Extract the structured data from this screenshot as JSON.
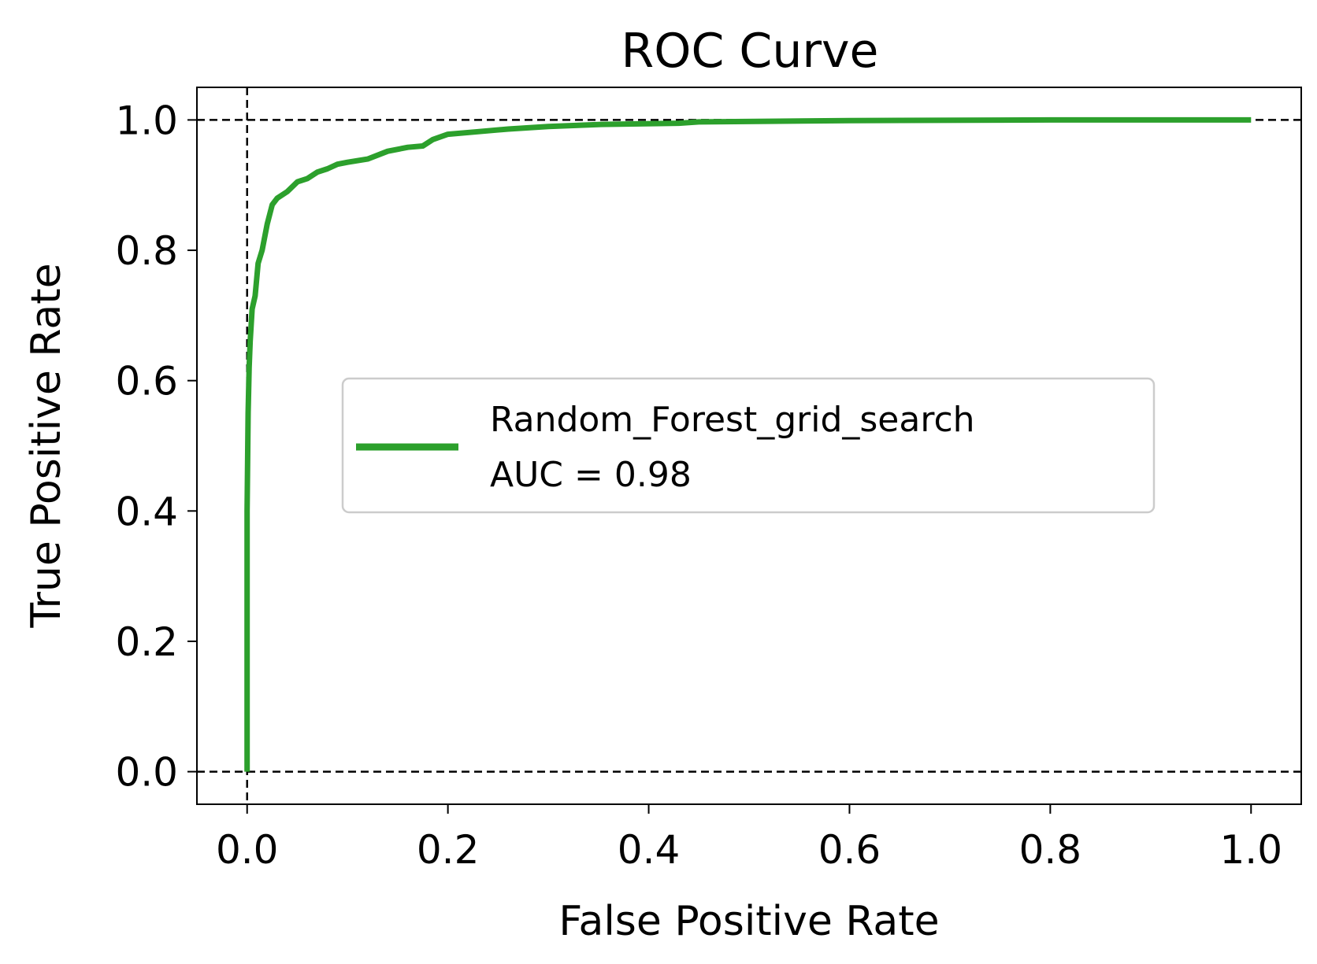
{
  "chart_data": {
    "type": "line",
    "title": "ROC Curve",
    "xlabel": "False Positive Rate",
    "ylabel": "True Positive Rate",
    "xlim": [
      -0.05,
      1.05
    ],
    "ylim": [
      -0.05,
      1.05
    ],
    "xticks": [
      "0.0",
      "0.2",
      "0.4",
      "0.6",
      "0.8",
      "1.0"
    ],
    "yticks": [
      "0.0",
      "0.2",
      "0.4",
      "0.6",
      "0.8",
      "1.0"
    ],
    "grid": false,
    "reference_lines": {
      "x": [
        0
      ],
      "y": [
        0,
        1
      ],
      "style": "dashed",
      "color": "#000000"
    },
    "legend": {
      "placement": "center",
      "lines": [
        "Random_Forest_grid_search",
        "AUC = 0.98"
      ]
    },
    "series": [
      {
        "color": "#2ca02c",
        "x": [
          0.0,
          0.0,
          0.001,
          0.002,
          0.003,
          0.005,
          0.008,
          0.011,
          0.015,
          0.02,
          0.025,
          0.03,
          0.04,
          0.05,
          0.06,
          0.07,
          0.08,
          0.09,
          0.1,
          0.12,
          0.14,
          0.16,
          0.175,
          0.185,
          0.2,
          0.23,
          0.26,
          0.3,
          0.35,
          0.43,
          0.45,
          0.52,
          0.6,
          0.8,
          1.0
        ],
        "y": [
          0.0,
          0.4,
          0.55,
          0.62,
          0.66,
          0.71,
          0.73,
          0.78,
          0.8,
          0.84,
          0.87,
          0.88,
          0.89,
          0.905,
          0.91,
          0.92,
          0.925,
          0.932,
          0.935,
          0.94,
          0.952,
          0.958,
          0.96,
          0.97,
          0.978,
          0.982,
          0.986,
          0.99,
          0.993,
          0.995,
          0.997,
          0.998,
          0.999,
          1.0,
          1.0
        ]
      }
    ]
  }
}
